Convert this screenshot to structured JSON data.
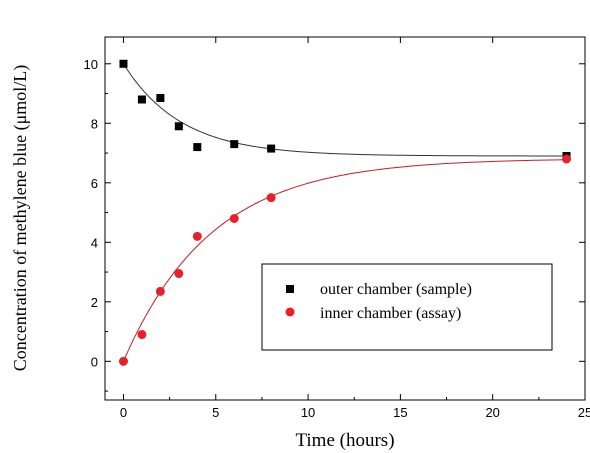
{
  "chart_data": {
    "type": "scatter",
    "title": "",
    "xlabel": "Time (hours)",
    "ylabel": "Concentration of methylene blue (μmol/L)",
    "xlim": [
      -1,
      25
    ],
    "ylim": [
      -1.3,
      10.9
    ],
    "xticks": [
      0,
      5,
      10,
      15,
      20,
      25
    ],
    "yticks": [
      0,
      2,
      4,
      6,
      8,
      10
    ],
    "grid": false,
    "legend_position": "lower-right",
    "series": [
      {
        "name": "outer chamber (sample)",
        "marker": "square",
        "color": "#000000",
        "points": [
          [
            0,
            10.0
          ],
          [
            1,
            8.8
          ],
          [
            2,
            8.85
          ],
          [
            3,
            7.9
          ],
          [
            4,
            7.2
          ],
          [
            6,
            7.3
          ],
          [
            8,
            7.15
          ],
          [
            24,
            6.9
          ]
        ],
        "fit": {
          "model": "exponential",
          "asymptote": 6.9,
          "amplitude": 3.1,
          "rate": 0.32
        }
      },
      {
        "name": "inner chamber (assay)",
        "marker": "circle",
        "color": "#e8202a",
        "points": [
          [
            0,
            0.0
          ],
          [
            1,
            0.9
          ],
          [
            2,
            2.35
          ],
          [
            3,
            2.95
          ],
          [
            4,
            4.2
          ],
          [
            6,
            4.8
          ],
          [
            8,
            5.5
          ],
          [
            24,
            6.8
          ]
        ],
        "fit": {
          "model": "exponential",
          "asymptote": 6.82,
          "amplitude": -6.82,
          "rate": 0.21
        }
      }
    ]
  }
}
